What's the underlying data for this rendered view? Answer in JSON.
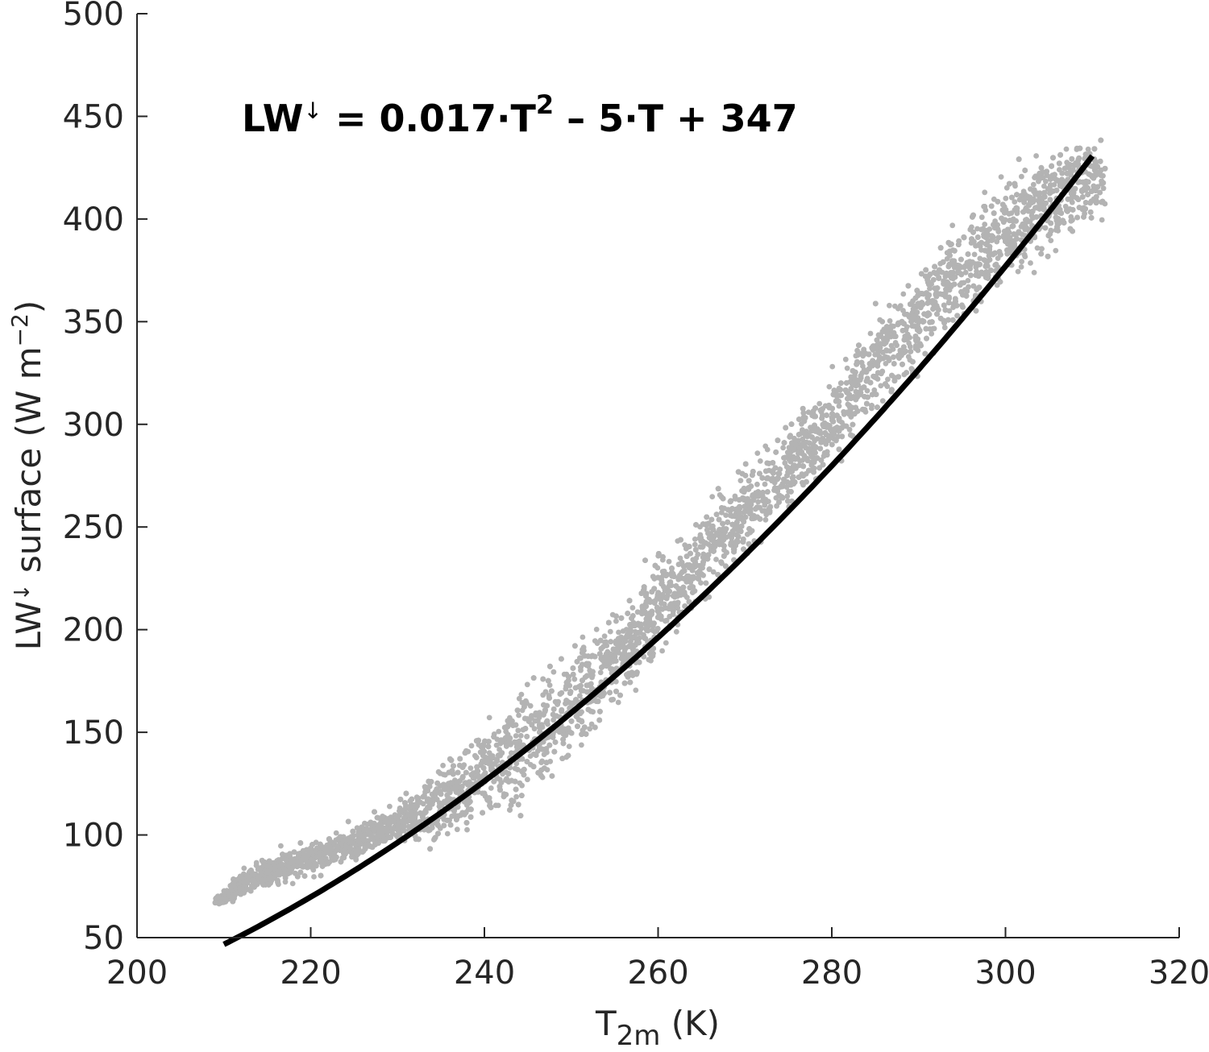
{
  "chart_data": {
    "type": "scatter",
    "title": "",
    "annotation": {
      "lhs": "LW",
      "arrow": "↓",
      "eq": " = 0.017·T",
      "sq": "2",
      "rest": " – 5·T + 347"
    },
    "xlabel": {
      "main": "T",
      "sub": "2m",
      "unit": " (K)"
    },
    "ylabel": {
      "lw": "LW",
      "arrow": "↓",
      "rest": " surface (W m",
      "exp": "−2",
      "close": ")"
    },
    "xlim": [
      200,
      320
    ],
    "ylim": [
      50,
      500
    ],
    "xticks": [
      "200",
      "220",
      "240",
      "260",
      "280",
      "300",
      "320"
    ],
    "yticks": [
      "50",
      "100",
      "150",
      "200",
      "250",
      "300",
      "350",
      "400",
      "450",
      "500"
    ],
    "grid": false,
    "scatter_color": "#b3b3b3",
    "fit_color": "#000000",
    "fit": {
      "a": 0.017,
      "b": -5,
      "c": 347,
      "x_range": [
        210,
        310
      ]
    },
    "band": {
      "x": [
        209,
        212,
        216,
        220,
        225,
        230,
        235,
        240,
        245,
        250,
        255,
        260,
        265,
        270,
        275,
        280,
        285,
        290,
        295,
        300,
        305,
        310
      ],
      "upper": [
        70,
        83,
        93,
        100,
        108,
        120,
        135,
        160,
        180,
        200,
        218,
        242,
        262,
        285,
        306,
        330,
        358,
        385,
        410,
        428,
        445,
        445
      ],
      "lower": [
        65,
        68,
        72,
        78,
        85,
        92,
        93,
        102,
        108,
        130,
        155,
        180,
        205,
        232,
        252,
        273,
        298,
        318,
        342,
        362,
        372,
        395
      ]
    }
  }
}
